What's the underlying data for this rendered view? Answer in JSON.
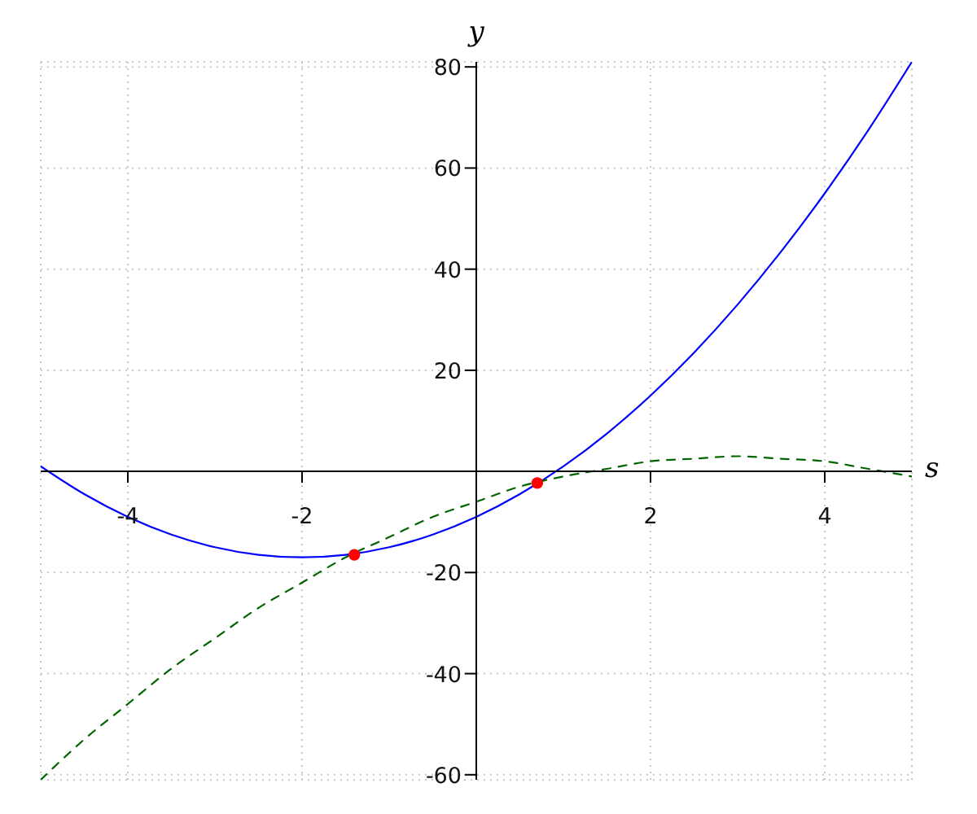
{
  "chart_data": {
    "type": "line",
    "xlabel": "s",
    "ylabel": "y",
    "xlim": [
      -5,
      5
    ],
    "ylim": [
      -61,
      81
    ],
    "xticks": [
      -4,
      -2,
      2,
      4
    ],
    "yticks": [
      -60,
      -40,
      -20,
      20,
      40,
      60,
      80
    ],
    "grid": true,
    "x": [
      -5,
      -4.5,
      -4,
      -3.5,
      -3,
      -2.5,
      -2,
      -1.5,
      -1,
      -0.5,
      0,
      0.5,
      1,
      1.5,
      2,
      2.5,
      3,
      3.5,
      4,
      4.5,
      5
    ],
    "series": [
      {
        "color": "#0000ff",
        "line_style": "solid",
        "marker": "none",
        "values": [
          1,
          -4.5,
          -9,
          -12.5,
          -15,
          -16.5,
          -17,
          -16.5,
          -15,
          -12.5,
          -9,
          -4.5,
          1,
          7.5,
          15,
          23.5,
          33,
          43.5,
          55,
          67.5,
          81
        ]
      },
      {
        "color": "#006400",
        "line_style": "dashed",
        "marker": "none",
        "values": [
          -61,
          -53,
          -46,
          -39,
          -33,
          -27,
          -22,
          -17,
          -13,
          -9,
          -6,
          -3,
          -1,
          0.5,
          2,
          2.5,
          3,
          2.5,
          2,
          0.5,
          -1
        ]
      },
      {
        "type": "scatter",
        "color": "#ff0000",
        "marker": "circle",
        "x": [
          -1.4,
          0.7
        ],
        "values": [
          -16.5,
          -2.3
        ]
      }
    ]
  }
}
